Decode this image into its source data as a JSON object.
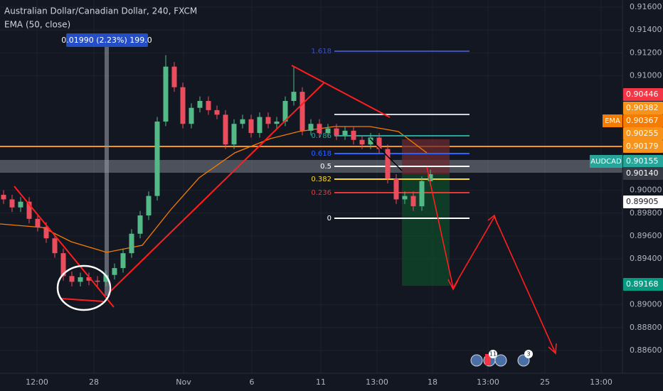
{
  "header": {
    "title": "Australian Dollar/Canadian Dollar, 240, FXCM",
    "indicator": "EMA (50, close)"
  },
  "measure_tooltip": "0.01990 (2.23%) 199.0",
  "candles": {
    "open": [
      0.8996,
      0.8992,
      0.8985,
      0.899,
      0.8975,
      0.8968,
      0.8958,
      0.8945,
      0.8925,
      0.892,
      0.8924,
      0.8921,
      0.892,
      0.8926,
      0.8932,
      0.8945,
      0.8962,
      0.8978,
      0.8995,
      0.906,
      0.9108,
      0.909,
      0.9058,
      0.9072,
      0.9078,
      0.907,
      0.9066,
      0.904,
      0.9058,
      0.9062,
      0.905,
      0.9064,
      0.9058,
      0.906,
      0.9078,
      0.9086,
      0.9052,
      0.9058,
      0.905,
      0.9054,
      0.9048,
      0.9052,
      0.9044,
      0.904,
      0.9046,
      0.9036,
      0.901,
      0.8992,
      0.8995,
      0.8986,
      0.9008
    ],
    "high": [
      0.9,
      0.8996,
      0.8994,
      0.8994,
      0.8979,
      0.8972,
      0.8962,
      0.8949,
      0.8929,
      0.8928,
      0.8928,
      0.8925,
      0.893,
      0.8936,
      0.8949,
      0.8966,
      0.8982,
      0.8999,
      0.9064,
      0.9118,
      0.9112,
      0.9094,
      0.9076,
      0.9082,
      0.9082,
      0.9074,
      0.907,
      0.9062,
      0.9066,
      0.9066,
      0.9068,
      0.9068,
      0.9064,
      0.9082,
      0.9108,
      0.909,
      0.9062,
      0.9062,
      0.9058,
      0.9058,
      0.9056,
      0.9056,
      0.9048,
      0.905,
      0.905,
      0.904,
      0.9014,
      0.8999,
      0.8999,
      0.9012,
      0.9018
    ],
    "low": [
      0.8988,
      0.8981,
      0.8981,
      0.8971,
      0.8964,
      0.8954,
      0.8941,
      0.8921,
      0.8916,
      0.8916,
      0.8917,
      0.8916,
      0.8916,
      0.8922,
      0.8928,
      0.8941,
      0.8958,
      0.8974,
      0.8991,
      0.9056,
      0.9086,
      0.9054,
      0.9054,
      0.9068,
      0.9066,
      0.9062,
      0.9036,
      0.9036,
      0.9054,
      0.9046,
      0.9046,
      0.9054,
      0.9054,
      0.9056,
      0.9074,
      0.9048,
      0.9048,
      0.9046,
      0.9046,
      0.9044,
      0.9044,
      0.904,
      0.9036,
      0.9036,
      0.9032,
      0.9006,
      0.8988,
      0.8988,
      0.8982,
      0.8982,
      0.9004
    ],
    "close": [
      0.8992,
      0.8985,
      0.899,
      0.8975,
      0.8968,
      0.8958,
      0.8945,
      0.8925,
      0.892,
      0.8924,
      0.8921,
      0.892,
      0.8926,
      0.8932,
      0.8945,
      0.8962,
      0.8978,
      0.8995,
      0.906,
      0.9108,
      0.909,
      0.9058,
      0.9072,
      0.9078,
      0.907,
      0.9066,
      0.904,
      0.9058,
      0.9062,
      0.905,
      0.9064,
      0.9058,
      0.906,
      0.9078,
      0.9086,
      0.9052,
      0.9058,
      0.905,
      0.9054,
      0.9048,
      0.9052,
      0.9044,
      0.904,
      0.9046,
      0.9036,
      0.901,
      0.8992,
      0.8995,
      0.8986,
      0.9008,
      0.9014
    ]
  },
  "price_ticks": [
    {
      "value": 0.916,
      "label": "0.91600"
    },
    {
      "value": 0.914,
      "label": "0.91400"
    },
    {
      "value": 0.912,
      "label": "0.91200"
    },
    {
      "value": 0.91,
      "label": "0.91000"
    },
    {
      "value": 0.9,
      "label": "0.90000"
    },
    {
      "value": 0.898,
      "label": "0.89800"
    },
    {
      "value": 0.896,
      "label": "0.89600"
    },
    {
      "value": 0.894,
      "label": "0.89400"
    },
    {
      "value": 0.89,
      "label": "0.89000"
    },
    {
      "value": 0.888,
      "label": "0.88800"
    },
    {
      "value": 0.886,
      "label": "0.88600"
    }
  ],
  "price_labels": [
    "0.90446",
    "0.90382",
    "0.90367",
    "0.90255",
    "0.90179",
    "0.90155",
    "0.90140",
    "0.89905",
    "0.89168"
  ],
  "tags": [
    "EMA",
    "AUDCAD"
  ],
  "fib_levels": [
    "1.618",
    "0.786",
    "0.618",
    "0.5",
    "0.382",
    "0.236",
    "0"
  ],
  "time_labels": [
    "12:00",
    "28",
    "Nov",
    "6",
    "11",
    "13:00",
    "18",
    "13:00",
    "25",
    "13:00"
  ],
  "event_badges": [
    "11",
    "3"
  ]
}
